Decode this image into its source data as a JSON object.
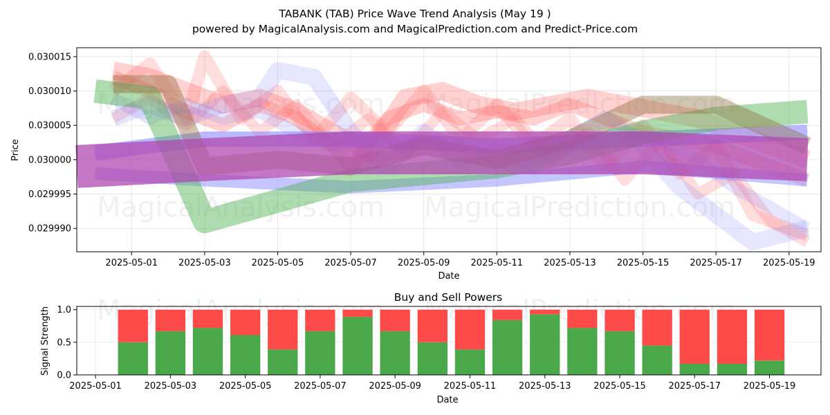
{
  "title_line1": "TABANK (TAB) Price Wave Trend Analysis (May 19 )",
  "title_line2": "powered by MagicalAnalysis.com and MagicalPrediction.com and Predict-Price.com",
  "watermarks": [
    "MagicalAnalysis.com",
    "MagicalPrediction.com"
  ],
  "colors": {
    "red": "#ff6666",
    "blue": "#8080ff",
    "green": "#4caf50",
    "purple": "#b04ab0",
    "brown": "#8b6b3a",
    "buy": "#4aa84a",
    "sell": "#ff4a4a"
  },
  "chart_data": [
    {
      "type": "line",
      "title": "",
      "xlabel": "Date",
      "ylabel": "Price",
      "x_ticks": [
        "2025-05-01",
        "2025-05-03",
        "2025-05-05",
        "2025-05-07",
        "2025-05-09",
        "2025-05-11",
        "2025-05-13",
        "2025-05-15",
        "2025-05-17",
        "2025-05-19"
      ],
      "y_ticks": [
        "0.029990",
        "0.029995",
        "0.030000",
        "0.030005",
        "0.030010",
        "0.030015"
      ],
      "xlim": [
        "2025-04-29T12:00",
        "2025-05-19T21:00"
      ],
      "ylim": [
        0.0299866,
        0.0300163
      ],
      "grid": true,
      "series": [
        {
          "color": "red",
          "width": 20,
          "opacity": 0.3,
          "points": [
            [
              "2025-04-30T12:00",
              0.030012
            ],
            [
              "2025-05-01T12:00",
              0.03001
            ],
            [
              "2025-05-02T12:00",
              0.030007
            ],
            [
              "2025-05-03T12:00",
              0.030005
            ],
            [
              "2025-05-04T12:00",
              0.030008
            ],
            [
              "2025-05-05T12:00",
              0.030006
            ],
            [
              "2025-05-06T12:00",
              0.030002
            ],
            [
              "2025-05-07T00:00",
              0.029999
            ],
            [
              "2025-05-08T00:00",
              0.030006
            ],
            [
              "2025-05-09T00:00",
              0.030008
            ],
            [
              "2025-05-10T00:00",
              0.030006
            ],
            [
              "2025-05-11T00:00",
              0.030007
            ],
            [
              "2025-05-12T00:00",
              0.030006
            ],
            [
              "2025-05-13T00:00",
              0.030008
            ],
            [
              "2025-05-14T00:00",
              0.030006
            ],
            [
              "2025-05-15T00:00",
              0.030004
            ],
            [
              "2025-05-16T00:00",
              0.030003
            ],
            [
              "2025-05-17T00:00",
              0.030002
            ],
            [
              "2025-05-18T00:00",
              0.03
            ],
            [
              "2025-05-19T12:00",
              0.029997
            ]
          ]
        },
        {
          "color": "red",
          "width": 26,
          "opacity": 0.3,
          "points": [
            [
              "2025-04-30T12:00",
              0.030013
            ],
            [
              "2025-05-01T12:00",
              0.030012
            ],
            [
              "2025-05-02T12:00",
              0.03001
            ],
            [
              "2025-05-03T12:00",
              0.030008
            ],
            [
              "2025-05-04T12:00",
              0.030009
            ],
            [
              "2025-05-05T12:00",
              0.030007
            ],
            [
              "2025-05-06T12:00",
              0.030004
            ],
            [
              "2025-05-07T12:00",
              0.030001
            ],
            [
              "2025-05-08T12:00",
              0.030009
            ],
            [
              "2025-05-09T12:00",
              0.03001
            ],
            [
              "2025-05-10T12:00",
              0.030008
            ],
            [
              "2025-05-11T12:00",
              0.030007
            ],
            [
              "2025-05-12T12:00",
              0.030008
            ],
            [
              "2025-05-13T12:00",
              0.030009
            ],
            [
              "2025-05-14T12:00",
              0.030008
            ],
            [
              "2025-05-15T12:00",
              0.030007
            ],
            [
              "2025-05-16T12:00",
              0.030006
            ],
            [
              "2025-05-17T12:00",
              0.030004
            ],
            [
              "2025-05-18T12:00",
              0.030002
            ],
            [
              "2025-05-19T12:00",
              0.03
            ]
          ]
        },
        {
          "color": "red",
          "width": 18,
          "opacity": 0.22,
          "points": [
            [
              "2025-04-30T12:00",
              0.03001
            ],
            [
              "2025-05-01T12:00",
              0.030014
            ],
            [
              "2025-05-02T12:00",
              0.030006
            ],
            [
              "2025-05-03T00:00",
              0.030015
            ],
            [
              "2025-05-04T00:00",
              0.030006
            ],
            [
              "2025-05-05T00:00",
              0.03001
            ],
            [
              "2025-05-06T00:00",
              0.030003
            ],
            [
              "2025-05-07T00:00",
              0.030009
            ],
            [
              "2025-05-08T00:00",
              0.030004
            ],
            [
              "2025-05-09T00:00",
              0.03001
            ],
            [
              "2025-05-10T00:00",
              0.030003
            ],
            [
              "2025-05-11T00:00",
              0.030008
            ],
            [
              "2025-05-12T00:00",
              0.030002
            ],
            [
              "2025-05-13T00:00",
              0.030006
            ],
            [
              "2025-05-14T00:00",
              0.029999
            ],
            [
              "2025-05-15T00:00",
              0.030005
            ],
            [
              "2025-05-16T00:00",
              0.029998
            ],
            [
              "2025-05-17T00:00",
              0.030002
            ],
            [
              "2025-05-18T00:00",
              0.029992
            ],
            [
              "2025-05-19T12:00",
              0.029989
            ]
          ]
        },
        {
          "color": "red",
          "width": 16,
          "opacity": 0.22,
          "points": [
            [
              "2025-04-30T12:00",
              0.030006
            ],
            [
              "2025-05-01T12:00",
              0.030009
            ],
            [
              "2025-05-02T12:00",
              0.030005
            ],
            [
              "2025-05-03T12:00",
              0.03001
            ],
            [
              "2025-05-04T12:00",
              0.030004
            ],
            [
              "2025-05-05T12:00",
              0.030008
            ],
            [
              "2025-05-06T12:00",
              0.030002
            ],
            [
              "2025-05-07T12:00",
              0.030006
            ],
            [
              "2025-05-08T12:00",
              0.030001
            ],
            [
              "2025-05-09T12:00",
              0.030007
            ],
            [
              "2025-05-10T12:00",
              0.030003
            ],
            [
              "2025-05-11T12:00",
              0.030006
            ],
            [
              "2025-05-12T12:00",
              0.03
            ],
            [
              "2025-05-13T12:00",
              0.030004
            ],
            [
              "2025-05-14T12:00",
              0.029997
            ],
            [
              "2025-05-15T12:00",
              0.030003
            ],
            [
              "2025-05-16T12:00",
              0.029995
            ],
            [
              "2025-05-17T12:00",
              0.029998
            ],
            [
              "2025-05-18T12:00",
              0.029991
            ],
            [
              "2025-05-19T12:00",
              0.029988
            ]
          ]
        },
        {
          "color": "blue",
          "width": 24,
          "opacity": 0.2,
          "points": [
            [
              "2025-04-30T12:00",
              0.030006
            ],
            [
              "2025-05-01T12:00",
              0.030008
            ],
            [
              "2025-05-02T12:00",
              0.030006
            ],
            [
              "2025-05-03T12:00",
              0.030008
            ],
            [
              "2025-05-04T12:00",
              0.030009
            ],
            [
              "2025-05-05T00:00",
              0.030013
            ],
            [
              "2025-05-06T00:00",
              0.030012
            ],
            [
              "2025-05-07T00:00",
              0.030004
            ],
            [
              "2025-05-08T00:00",
              0.029999
            ],
            [
              "2025-05-09T00:00",
              0.030004
            ],
            [
              "2025-05-10T00:00",
              0.03
            ],
            [
              "2025-05-11T00:00",
              0.030002
            ],
            [
              "2025-05-12T00:00",
              0.029999
            ],
            [
              "2025-05-13T00:00",
              0.030003
            ],
            [
              "2025-05-14T00:00",
              0.030006
            ],
            [
              "2025-05-15T00:00",
              0.030002
            ],
            [
              "2025-05-16T00:00",
              0.029996
            ],
            [
              "2025-05-17T00:00",
              0.029992
            ],
            [
              "2025-05-18T00:00",
              0.029988
            ],
            [
              "2025-05-19T12:00",
              0.02999
            ]
          ]
        },
        {
          "color": "blue",
          "width": 18,
          "opacity": 0.2,
          "points": [
            [
              "2025-04-30T12:00",
              0.030009
            ],
            [
              "2025-05-01T12:00",
              0.030006
            ],
            [
              "2025-05-02T12:00",
              0.030008
            ],
            [
              "2025-05-03T12:00",
              0.030006
            ],
            [
              "2025-05-04T12:00",
              0.030007
            ],
            [
              "2025-05-05T12:00",
              0.030004
            ],
            [
              "2025-05-06T12:00",
              0.030002
            ],
            [
              "2025-05-07T12:00",
              0.030003
            ],
            [
              "2025-05-08T12:00",
              0.030002
            ],
            [
              "2025-05-09T12:00",
              0.030003
            ],
            [
              "2025-05-10T12:00",
              0.030001
            ],
            [
              "2025-05-11T12:00",
              0.029999
            ],
            [
              "2025-05-12T12:00",
              0.030001
            ],
            [
              "2025-05-13T12:00",
              0.030002
            ],
            [
              "2025-05-14T12:00",
              0.030004
            ],
            [
              "2025-05-15T12:00",
              0.030003
            ],
            [
              "2025-05-16T12:00",
              0.03
            ],
            [
              "2025-05-17T12:00",
              0.029996
            ],
            [
              "2025-05-18T12:00",
              0.029993
            ],
            [
              "2025-05-19T12:00",
              0.02999
            ]
          ]
        },
        {
          "color": "blue",
          "width": 22,
          "opacity": 0.55,
          "points": [
            [
              "2025-04-30T00:00",
              0.030001
            ],
            [
              "2025-05-03T00:00",
              0.030003
            ],
            [
              "2025-05-07T00:00",
              0.030003
            ],
            [
              "2025-05-11T00:00",
              0.030002
            ],
            [
              "2025-05-15T00:00",
              0.030003
            ],
            [
              "2025-05-19T12:00",
              0.030004
            ]
          ]
        },
        {
          "color": "blue",
          "width": 18,
          "opacity": 0.45,
          "points": [
            [
              "2025-04-30T00:00",
              0.029998
            ],
            [
              "2025-05-03T00:00",
              0.029997
            ],
            [
              "2025-05-07T00:00",
              0.029996
            ],
            [
              "2025-05-11T00:00",
              0.029997
            ],
            [
              "2025-05-15T00:00",
              0.029999
            ],
            [
              "2025-05-19T12:00",
              0.029997
            ]
          ]
        },
        {
          "color": "green",
          "width": 34,
          "opacity": 0.45,
          "points": [
            [
              "2025-04-30T00:00",
              0.03001
            ],
            [
              "2025-05-01T12:00",
              0.030009
            ],
            [
              "2025-05-03T00:00",
              0.029991
            ],
            [
              "2025-05-05T00:00",
              0.029994
            ],
            [
              "2025-05-07T00:00",
              0.029997
            ],
            [
              "2025-05-09T00:00",
              0.029998
            ],
            [
              "2025-05-11T00:00",
              0.029999
            ],
            [
              "2025-05-13T00:00",
              0.030001
            ],
            [
              "2025-05-15T00:00",
              0.030004
            ],
            [
              "2025-05-17T00:00",
              0.030006
            ],
            [
              "2025-05-19T12:00",
              0.030007
            ]
          ]
        },
        {
          "color": "brown",
          "width": 26,
          "opacity": 0.4,
          "points": [
            [
              "2025-04-30T12:00",
              0.030011
            ],
            [
              "2025-05-02T00:00",
              0.030011
            ],
            [
              "2025-05-03T00:00",
              0.029999
            ],
            [
              "2025-05-05T00:00",
              0.03
            ],
            [
              "2025-05-07T00:00",
              0.029999
            ],
            [
              "2025-05-09T00:00",
              0.030002
            ],
            [
              "2025-05-11T00:00",
              0.03
            ],
            [
              "2025-05-13T00:00",
              0.030003
            ],
            [
              "2025-05-15T00:00",
              0.030008
            ],
            [
              "2025-05-17T00:00",
              0.030008
            ],
            [
              "2025-05-19T12:00",
              0.030002
            ]
          ]
        },
        {
          "color": "purple",
          "width": 62,
          "opacity": 0.75,
          "points": [
            [
              "2025-04-29T12:00",
              0.029999
            ],
            [
              "2025-05-03T00:00",
              0.03
            ],
            [
              "2025-05-07T00:00",
              0.030001
            ],
            [
              "2025-05-11T00:00",
              0.030001
            ],
            [
              "2025-05-15T00:00",
              0.030001
            ],
            [
              "2025-05-19T12:00",
              0.03
            ]
          ]
        }
      ]
    },
    {
      "type": "bar",
      "title": "Buy and Sell Powers",
      "xlabel": "Date",
      "ylabel": "Signal Strength",
      "x_ticks": [
        "2025-05-01",
        "2025-05-03",
        "2025-05-05",
        "2025-05-07",
        "2025-05-09",
        "2025-05-11",
        "2025-05-13",
        "2025-05-15",
        "2025-05-17",
        "2025-05-19"
      ],
      "y_ticks": [
        "0.0",
        "0.5",
        "1.0"
      ],
      "xlim": [
        "2025-04-30T12:00",
        "2025-05-20T09:00"
      ],
      "ylim": [
        0,
        1.05
      ],
      "grid": true,
      "categories": [
        "2025-05-02",
        "2025-05-03",
        "2025-05-04",
        "2025-05-05",
        "2025-05-06",
        "2025-05-07",
        "2025-05-08",
        "2025-05-09",
        "2025-05-10",
        "2025-05-11",
        "2025-05-12",
        "2025-05-13",
        "2025-05-14",
        "2025-05-15",
        "2025-05-16",
        "2025-05-17",
        "2025-05-18",
        "2025-05-19"
      ],
      "series": [
        {
          "color": "buy",
          "values": [
            0.5,
            0.67,
            0.72,
            0.61,
            0.39,
            0.67,
            0.89,
            0.67,
            0.5,
            0.39,
            0.84,
            0.93,
            0.72,
            0.67,
            0.45,
            0.17,
            0.17,
            0.22
          ]
        },
        {
          "color": "sell",
          "values": [
            0.5,
            0.33,
            0.28,
            0.39,
            0.61,
            0.33,
            0.11,
            0.33,
            0.5,
            0.61,
            0.16,
            0.07,
            0.28,
            0.33,
            0.55,
            0.83,
            0.83,
            0.78
          ]
        }
      ]
    }
  ]
}
